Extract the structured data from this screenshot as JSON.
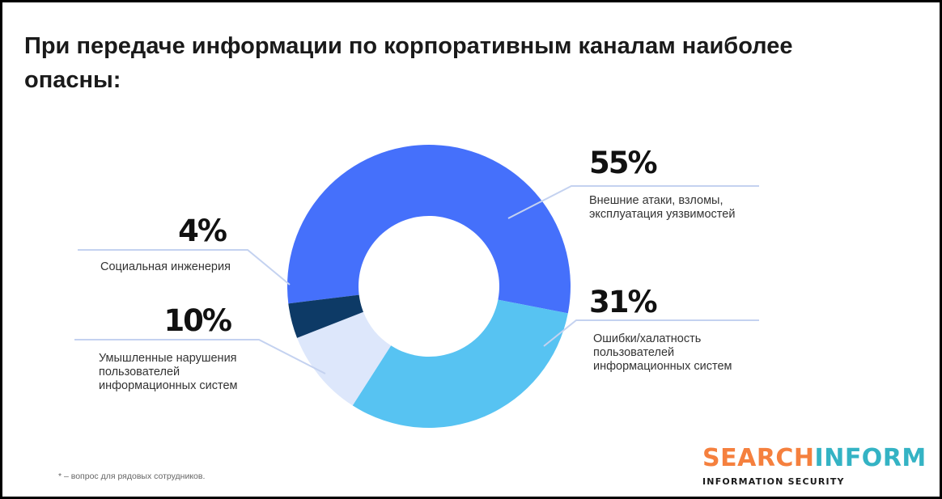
{
  "title": "При передаче информации по корпоративным каналам наиболее опасны:",
  "footnote": "* – вопрос для рядовых сотрудников.",
  "logo": {
    "word_a": "SEARCH",
    "word_b": "INFORM",
    "subtitle": "INFORMATION SECURITY"
  },
  "chart_data": {
    "type": "pie",
    "title": "При передаче информации по корпоративным каналам наиболее опасны:",
    "slices": [
      {
        "value": 55,
        "pct_label": "55%",
        "label_lines": [
          "Внешние атаки, взломы,",
          "эксплуатация уязвимостей"
        ],
        "color": "#4570fb"
      },
      {
        "value": 31,
        "pct_label": "31%",
        "label_lines": [
          "Ошибки/халатность",
          "пользователей",
          "информационных систем"
        ],
        "color": "#57c3f2"
      },
      {
        "value": 10,
        "pct_label": "10%",
        "label_lines": [
          "Умышленные нарушения",
          "пользователей",
          "информационных систем"
        ],
        "color": "#dde7fb"
      },
      {
        "value": 4,
        "pct_label": "4%",
        "label_lines": [
          "Социальная инженерия"
        ],
        "color": "#0d3a66"
      }
    ]
  }
}
